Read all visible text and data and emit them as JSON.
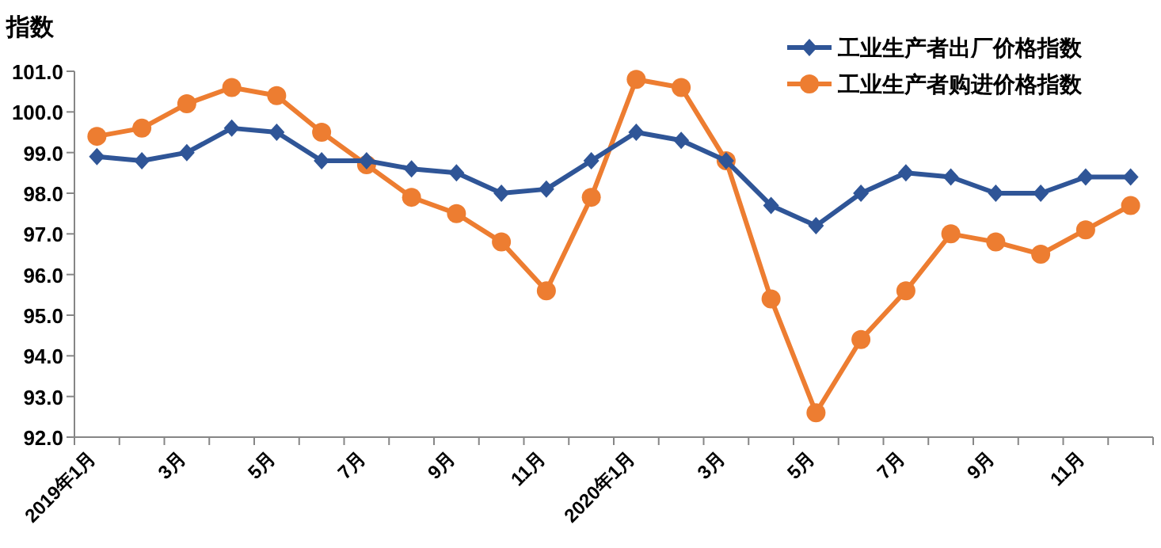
{
  "chart_data": {
    "type": "line",
    "ylabel": "指数",
    "categories": [
      "2019年1月",
      null,
      "3月",
      null,
      "5月",
      null,
      "7月",
      null,
      "9月",
      null,
      "11月",
      null,
      "2020年1月",
      null,
      "3月",
      null,
      "5月",
      null,
      "7月",
      null,
      "9月",
      null,
      "11月",
      null
    ],
    "series": [
      {
        "name": "工业生产者出厂价格指数",
        "color": "#2f5597",
        "marker": "diamond",
        "values": [
          98.9,
          98.8,
          99.0,
          99.6,
          99.5,
          98.8,
          98.8,
          98.6,
          98.5,
          98.0,
          98.1,
          98.8,
          99.5,
          99.3,
          98.8,
          97.7,
          97.2,
          98.0,
          98.5,
          98.4,
          98.0,
          98.0,
          98.4,
          98.4
        ]
      },
      {
        "name": "工业生产者购进价格指数",
        "color": "#ed7d31",
        "marker": "circle",
        "values": [
          99.4,
          99.6,
          100.2,
          100.6,
          100.4,
          99.5,
          98.7,
          97.9,
          97.5,
          96.8,
          95.6,
          97.9,
          100.8,
          100.6,
          98.8,
          95.4,
          92.6,
          94.4,
          95.6,
          97.0,
          96.8,
          96.5,
          97.1,
          97.7
        ]
      }
    ],
    "ylim": [
      92,
      101
    ],
    "yticks": [
      {
        "value": 92,
        "label": "92.0"
      },
      {
        "value": 93,
        "label": "93.0"
      },
      {
        "value": 94,
        "label": "94.0"
      },
      {
        "value": 95,
        "label": "95.0"
      },
      {
        "value": 96,
        "label": "96.0"
      },
      {
        "value": 97,
        "label": "97.0"
      },
      {
        "value": 98,
        "label": "98.0"
      },
      {
        "value": 99,
        "label": "99.0"
      },
      {
        "value": 100,
        "label": "100.0"
      },
      {
        "value": 101,
        "label": "101.0"
      }
    ],
    "grid": false,
    "legend": "top right",
    "line_style": "solid"
  }
}
